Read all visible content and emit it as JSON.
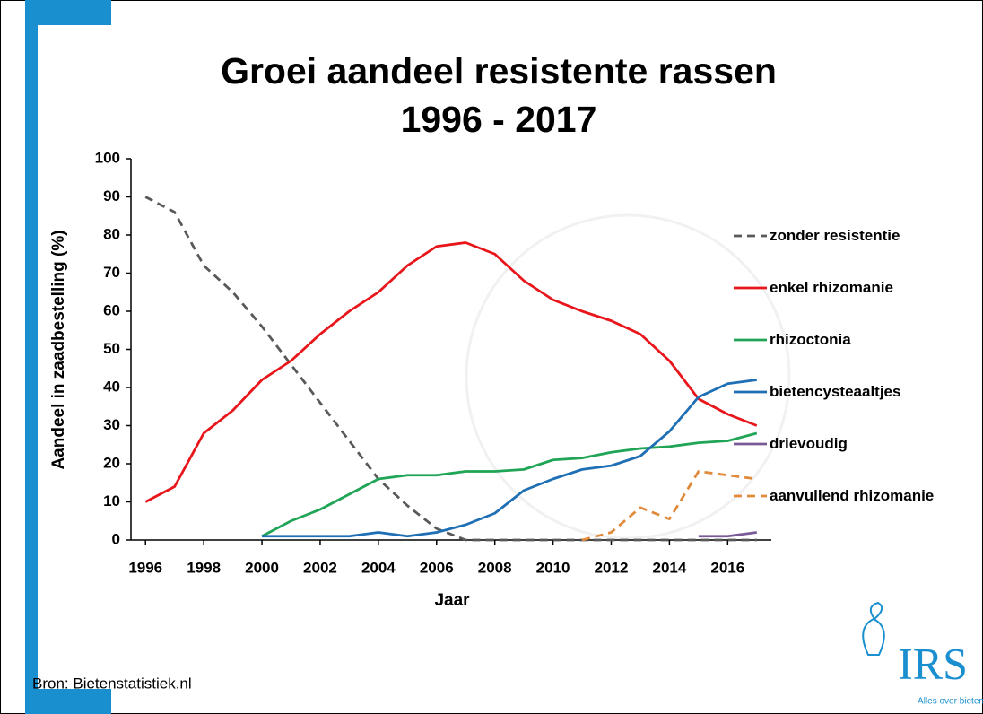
{
  "chart_data": {
    "type": "line",
    "title": "Groei aandeel resistente rassen",
    "subtitle": "1996 - 2017",
    "x_label": "Jaar",
    "y_label": "Aandeel in zaadbestelling (%)",
    "source": "Bron: Bietenstatistiek.nl",
    "logo": "IRS",
    "logo_tagline": "Alles over bieten",
    "x": [
      1996,
      1997,
      1998,
      1999,
      2000,
      2001,
      2002,
      2003,
      2004,
      2005,
      2006,
      2007,
      2008,
      2009,
      2010,
      2011,
      2012,
      2013,
      2014,
      2015,
      2016,
      2017
    ],
    "xlim": [
      1995.5,
      2017.5
    ],
    "xticks": [
      1996,
      1998,
      2000,
      2002,
      2004,
      2006,
      2008,
      2010,
      2012,
      2014,
      2016
    ],
    "ylim": [
      0,
      100
    ],
    "yticks": [
      0,
      10,
      20,
      30,
      40,
      50,
      60,
      70,
      80,
      90,
      100
    ],
    "grid": false,
    "legend": "right",
    "series": [
      {
        "name": "zonder resistentie",
        "color": "#595959",
        "dashed": true,
        "values": [
          90,
          86,
          72,
          65,
          56,
          46,
          36,
          26,
          16,
          9,
          3,
          0,
          0,
          0,
          0,
          0,
          0,
          0,
          0,
          0,
          0,
          0
        ]
      },
      {
        "name": "enkel rhizomanie",
        "color": "#e8161b",
        "dashed": false,
        "values": [
          10,
          14,
          28,
          34,
          42,
          47,
          54,
          60,
          65,
          72,
          77,
          78,
          75,
          68,
          63,
          60,
          57.5,
          54,
          47,
          37,
          33,
          30
        ]
      },
      {
        "name": "rhizoctonia",
        "color": "#1fa555",
        "dashed": false,
        "values": [
          null,
          null,
          null,
          null,
          1,
          5,
          8,
          12,
          16,
          17,
          17,
          18,
          18,
          18.5,
          21,
          21.5,
          23,
          24,
          24.5,
          25.5,
          26,
          28
        ]
      },
      {
        "name": "bietencysteaaltjes",
        "color": "#1f6fb5",
        "dashed": false,
        "values": [
          null,
          null,
          null,
          null,
          1,
          1,
          1,
          1,
          2,
          1,
          2,
          4,
          7,
          13,
          16,
          18.5,
          19.5,
          22,
          28.5,
          37.5,
          41,
          42
        ]
      },
      {
        "name": "drievoudig",
        "color": "#7a5a96",
        "dashed": false,
        "values": [
          null,
          null,
          null,
          null,
          null,
          null,
          null,
          null,
          null,
          null,
          null,
          null,
          null,
          null,
          null,
          null,
          null,
          null,
          null,
          1,
          1,
          2
        ]
      },
      {
        "name": "aanvullend rhizomanie",
        "color": "#e08a3a",
        "dashed": true,
        "values": [
          null,
          null,
          null,
          null,
          null,
          null,
          null,
          null,
          null,
          null,
          null,
          null,
          null,
          null,
          null,
          0,
          2,
          8.5,
          5.5,
          18,
          17,
          16
        ]
      }
    ]
  }
}
